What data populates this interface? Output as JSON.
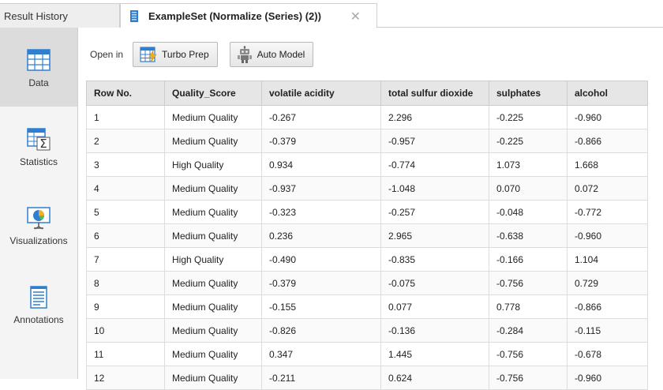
{
  "tabs": {
    "inactive_label": "Result History",
    "active_label": "ExampleSet (Normalize (Series) (2))",
    "close_glyph": "✕"
  },
  "sidebar": {
    "items": [
      {
        "label": "Data",
        "icon": "table-icon",
        "selected": true
      },
      {
        "label": "Statistics",
        "icon": "statistics-icon",
        "selected": false
      },
      {
        "label": "Visualizations",
        "icon": "visualizations-icon",
        "selected": false
      },
      {
        "label": "Annotations",
        "icon": "annotations-icon",
        "selected": false
      }
    ]
  },
  "toolbar": {
    "open_in_label": "Open in",
    "turbo_prep_label": "Turbo Prep",
    "auto_model_label": "Auto Model"
  },
  "table": {
    "columns": [
      "Row No.",
      "Quality_Score",
      "volatile acidity",
      "total sulfur dioxide",
      "sulphates",
      "alcohol"
    ],
    "rows": [
      [
        "1",
        "Medium Quality",
        "-0.267",
        "2.296",
        "-0.225",
        "-0.960"
      ],
      [
        "2",
        "Medium Quality",
        "-0.379",
        "-0.957",
        "-0.225",
        "-0.866"
      ],
      [
        "3",
        "High Quality",
        "0.934",
        "-0.774",
        "1.073",
        "1.668"
      ],
      [
        "4",
        "Medium Quality",
        "-0.937",
        "-1.048",
        "0.070",
        "0.072"
      ],
      [
        "5",
        "Medium Quality",
        "-0.323",
        "-0.257",
        "-0.048",
        "-0.772"
      ],
      [
        "6",
        "Medium Quality",
        "0.236",
        "2.965",
        "-0.638",
        "-0.960"
      ],
      [
        "7",
        "High Quality",
        "-0.490",
        "-0.835",
        "-0.166",
        "1.104"
      ],
      [
        "8",
        "Medium Quality",
        "-0.379",
        "-0.075",
        "-0.756",
        "0.729"
      ],
      [
        "9",
        "Medium Quality",
        "-0.155",
        "0.077",
        "0.778",
        "-0.866"
      ],
      [
        "10",
        "Medium Quality",
        "-0.826",
        "-0.136",
        "-0.284",
        "-0.115"
      ],
      [
        "11",
        "Medium Quality",
        "0.347",
        "1.445",
        "-0.756",
        "-0.678"
      ],
      [
        "12",
        "Medium Quality",
        "-0.211",
        "0.624",
        "-0.756",
        "-0.960"
      ]
    ]
  },
  "colors": {
    "accent_blue": "#2f7fd0",
    "selected_sidebar": "#dcdcdc"
  }
}
